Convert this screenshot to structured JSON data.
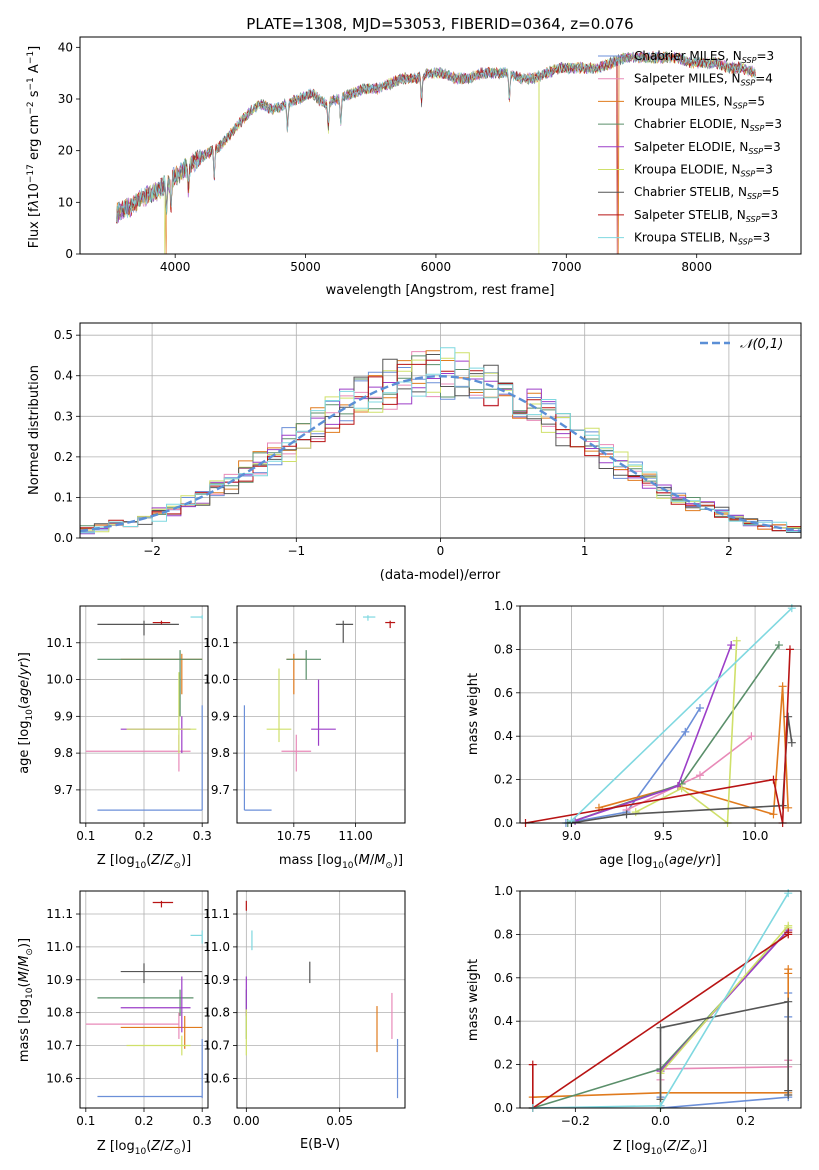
{
  "colors": {
    "Chabrier MILES": "#6b8fd8",
    "Salpeter MILES": "#e88ab8",
    "Kroupa MILES": "#e07b1e",
    "Chabrier ELODIE": "#5a8f6a",
    "Salpeter ELODIE": "#9c3ec8",
    "Kroupa ELODIE": "#cfe06a",
    "Chabrier STELIB": "#555555",
    "Salpeter STELIB": "#b81414",
    "Kroupa STELIB": "#7fd8e0",
    "normal": "#5b8fd6"
  },
  "chart_data": [
    {
      "id": "spectrum",
      "type": "line",
      "title": "PLATE=1308, MJD=53053, FIBERID=0364, z=0.076",
      "xlabel": "wavelength [Angstrom, rest frame]",
      "ylabel": "Flux [f_λ 10^-17 erg cm^-2 s^-1 A^-1]",
      "xlim": [
        3270,
        8800
      ],
      "ylim": [
        0,
        42
      ],
      "xticks": [
        4000,
        5000,
        6000,
        7000,
        8000
      ],
      "yticks": [
        0,
        10,
        20,
        30,
        40
      ],
      "legend": [
        {
          "name": "Chabrier MILES",
          "nssp": "3"
        },
        {
          "name": "Salpeter MILES",
          "nssp": "4"
        },
        {
          "name": "Kroupa MILES",
          "nssp": "5"
        },
        {
          "name": "Chabrier ELODIE",
          "nssp": "3"
        },
        {
          "name": "Salpeter ELODIE",
          "nssp": "3"
        },
        {
          "name": "Kroupa ELODIE",
          "nssp": "3"
        },
        {
          "name": "Chabrier STELIB",
          "nssp": "5"
        },
        {
          "name": "Salpeter STELIB",
          "nssp": "3"
        },
        {
          "name": "Kroupa STELIB",
          "nssp": "3"
        }
      ],
      "legend_position": "right",
      "continuum": {
        "x": [
          3550,
          3650,
          3750,
          3850,
          3950,
          4050,
          4150,
          4250,
          4350,
          4450,
          4550,
          4650,
          4750,
          4850,
          4950,
          5050,
          5150,
          5250,
          5350,
          5450,
          5550,
          5650,
          5750,
          5850,
          5950,
          6050,
          6150,
          6250,
          6350,
          6450,
          6550,
          6650,
          6750,
          6850,
          6950,
          7050,
          7150,
          7250,
          7350,
          7450,
          7550,
          7650,
          7750,
          7850,
          7950,
          8050,
          8150,
          8250,
          8350,
          8450
        ],
        "y": [
          8,
          9,
          11,
          12,
          14,
          16,
          18,
          19.5,
          21,
          24,
          27,
          29,
          28,
          29,
          30,
          31,
          29,
          30,
          31,
          32,
          32,
          33,
          34,
          34,
          35,
          35,
          34,
          34,
          35,
          35,
          35,
          34,
          34,
          35,
          36,
          36,
          36,
          36,
          37,
          38,
          38,
          38,
          38,
          38,
          37,
          37,
          37,
          36,
          36,
          35
        ]
      },
      "absorption_features": [
        3934,
        3968,
        4102,
        4300,
        4861,
        5175,
        5270,
        5890,
        6563
      ],
      "series_drops": [
        {
          "name": "Kroupa ELODIE",
          "x": 3920
        },
        {
          "name": "Kroupa MILES",
          "x": 3930
        },
        {
          "name": "Kroupa ELODIE",
          "x": 6790
        },
        {
          "name": "Salpeter STELIB",
          "x": 7390
        },
        {
          "name": "Kroupa MILES",
          "x": 7400
        }
      ]
    },
    {
      "id": "residuals",
      "type": "histogram",
      "xlabel": "(data-model)/error",
      "ylabel": "Normed distribution",
      "xlim": [
        -2.5,
        2.5
      ],
      "ylim": [
        0,
        0.53
      ],
      "xticks": [
        -2,
        -1,
        0,
        1,
        2
      ],
      "yticks": [
        0.0,
        0.1,
        0.2,
        0.3,
        0.4,
        0.5
      ],
      "grid": true,
      "bin_width": 0.1,
      "reference": {
        "name": "𝒩(0,1)",
        "mean": 0,
        "sigma": 1
      },
      "legend_position": "top-right"
    },
    {
      "id": "age_vs_Z",
      "type": "errorbar",
      "xlabel": "Z [log10(Z/Z⊙)]",
      "ylabel": "age  [log10(age/yr)]",
      "xlim": [
        0.09,
        0.31
      ],
      "ylim": [
        9.61,
        10.2
      ],
      "xticks": [
        0.1,
        0.2,
        0.3
      ],
      "yticks": [
        9.7,
        9.8,
        9.9,
        10.0,
        10.1
      ],
      "grid": true,
      "points": [
        {
          "s": "Chabrier MILES",
          "x": 0.3,
          "xl": 0.12,
          "xh": 0.3,
          "y": 9.645,
          "yl": 9.645,
          "yh": 9.93
        },
        {
          "s": "Salpeter MILES",
          "x": 0.26,
          "xl": 0.1,
          "xh": 0.28,
          "y": 9.805,
          "yl": 9.75,
          "yh": 9.85
        },
        {
          "s": "Kroupa MILES",
          "x": 0.265,
          "xl": 0.16,
          "xh": 0.3,
          "y": 10.055,
          "yl": 9.96,
          "yh": 10.07
        },
        {
          "s": "Chabrier ELODIE",
          "x": 0.262,
          "xl": 0.12,
          "xh": 0.3,
          "y": 10.055,
          "yl": 9.9,
          "yh": 10.08
        },
        {
          "s": "Salpeter ELODIE",
          "x": 0.265,
          "xl": 0.16,
          "xh": 0.28,
          "y": 9.865,
          "yl": 9.8,
          "yh": 9.9
        },
        {
          "s": "Kroupa ELODIE",
          "x": 0.26,
          "xl": 0.17,
          "xh": 0.29,
          "y": 9.865,
          "yl": 9.8,
          "yh": 10.02
        },
        {
          "s": "Chabrier STELIB",
          "x": 0.2,
          "xl": 0.12,
          "xh": 0.26,
          "y": 10.15,
          "yl": 10.12,
          "yh": 10.16
        },
        {
          "s": "Salpeter STELIB",
          "x": 0.23,
          "xl": 0.215,
          "xh": 0.245,
          "y": 10.155,
          "yl": 10.15,
          "yh": 10.16
        },
        {
          "s": "Kroupa STELIB",
          "x": 0.3,
          "xl": 0.28,
          "xh": 0.3,
          "y": 10.17,
          "yl": 10.165,
          "yh": 10.175
        }
      ]
    },
    {
      "id": "age_vs_mass",
      "type": "errorbar",
      "xlabel": "mass [log10(M/M⊙)]",
      "ylabel": "",
      "xlim": [
        10.52,
        11.2
      ],
      "ylim": [
        9.61,
        10.2
      ],
      "xticks": [
        10.75,
        11.0
      ],
      "yticks": [
        9.7,
        9.8,
        9.9,
        10.0,
        10.1
      ],
      "grid": true,
      "points": [
        {
          "s": "Chabrier MILES",
          "x": 10.55,
          "xl": 10.55,
          "xh": 10.66,
          "y": 9.645,
          "yl": 9.645,
          "yh": 9.93
        },
        {
          "s": "Salpeter MILES",
          "x": 10.76,
          "xl": 10.7,
          "xh": 10.82,
          "y": 9.805,
          "yl": 9.75,
          "yh": 9.85
        },
        {
          "s": "Kroupa MILES",
          "x": 10.75,
          "xl": 10.72,
          "xh": 10.8,
          "y": 10.055,
          "yl": 9.96,
          "yh": 10.07
        },
        {
          "s": "Chabrier ELODIE",
          "x": 10.8,
          "xl": 10.72,
          "xh": 10.86,
          "y": 10.055,
          "yl": 10.0,
          "yh": 10.08
        },
        {
          "s": "Salpeter ELODIE",
          "x": 10.85,
          "xl": 10.82,
          "xh": 10.92,
          "y": 9.865,
          "yl": 9.82,
          "yh": 10.0
        },
        {
          "s": "Kroupa ELODIE",
          "x": 10.69,
          "xl": 10.64,
          "xh": 10.74,
          "y": 9.865,
          "yl": 9.83,
          "yh": 10.03
        },
        {
          "s": "Chabrier STELIB",
          "x": 10.95,
          "xl": 10.92,
          "xh": 10.99,
          "y": 10.15,
          "yl": 10.1,
          "yh": 10.16
        },
        {
          "s": "Salpeter STELIB",
          "x": 11.14,
          "xl": 11.12,
          "xh": 11.16,
          "y": 10.155,
          "yl": 10.14,
          "yh": 10.16
        },
        {
          "s": "Kroupa STELIB",
          "x": 11.05,
          "xl": 11.03,
          "xh": 11.08,
          "y": 10.17,
          "yl": 10.16,
          "yh": 10.175
        }
      ]
    },
    {
      "id": "mass_weight_vs_age",
      "type": "line",
      "xlabel": "age  [log10(age/yr)]",
      "ylabel": "mass weight",
      "xlim": [
        8.72,
        10.25
      ],
      "ylim": [
        0,
        1.0
      ],
      "xticks": [
        9.0,
        9.5,
        10.0
      ],
      "yticks": [
        0.0,
        0.2,
        0.4,
        0.6,
        0.8,
        1.0
      ],
      "grid": true,
      "series": [
        {
          "name": "Chabrier MILES",
          "x": [
            8.97,
            9.3,
            9.62,
            9.7
          ],
          "y": [
            0.0,
            0.05,
            0.42,
            0.53
          ]
        },
        {
          "name": "Salpeter MILES",
          "x": [
            9.3,
            9.6,
            9.7,
            9.98
          ],
          "y": [
            0.06,
            0.18,
            0.22,
            0.4
          ]
        },
        {
          "name": "Kroupa MILES",
          "x": [
            9.15,
            9.58,
            10.1,
            10.15,
            10.18
          ],
          "y": [
            0.07,
            0.17,
            0.04,
            0.63,
            0.07
          ]
        },
        {
          "name": "Chabrier ELODIE",
          "x": [
            8.98,
            9.6,
            10.13
          ],
          "y": [
            0.0,
            0.18,
            0.82
          ]
        },
        {
          "name": "Salpeter ELODIE",
          "x": [
            9.02,
            9.58,
            9.87
          ],
          "y": [
            0.01,
            0.17,
            0.82
          ]
        },
        {
          "name": "Kroupa ELODIE",
          "x": [
            9.35,
            9.6,
            9.85,
            9.9
          ],
          "y": [
            0.05,
            0.16,
            0.0,
            0.84
          ]
        },
        {
          "name": "Chabrier STELIB",
          "x": [
            9.0,
            9.3,
            10.15,
            10.18,
            10.2
          ],
          "y": [
            0.0,
            0.04,
            0.08,
            0.49,
            0.37
          ]
        },
        {
          "name": "Salpeter STELIB",
          "x": [
            8.75,
            10.1,
            10.15,
            10.19
          ],
          "y": [
            0.0,
            0.2,
            0.0,
            0.8
          ]
        },
        {
          "name": "Kroupa STELIB",
          "x": [
            9.0,
            10.2
          ],
          "y": [
            0.01,
            0.99
          ]
        }
      ]
    },
    {
      "id": "mass_vs_Z",
      "type": "errorbar",
      "xlabel": "Z [log10(Z/Z⊙)]",
      "ylabel": "mass [log10(M/M⊙)]",
      "xlim": [
        0.09,
        0.31
      ],
      "ylim": [
        10.51,
        11.17
      ],
      "xticks": [
        0.1,
        0.2,
        0.3
      ],
      "yticks": [
        10.6,
        10.7,
        10.8,
        10.9,
        11.0,
        11.1
      ],
      "grid": true,
      "points": [
        {
          "s": "Chabrier MILES",
          "x": 0.3,
          "xl": 0.12,
          "xh": 0.3,
          "y": 10.545,
          "yl": 10.54,
          "yh": 10.72
        },
        {
          "s": "Salpeter MILES",
          "x": 0.26,
          "xl": 0.1,
          "xh": 0.26,
          "y": 10.765,
          "yl": 10.72,
          "yh": 10.8
        },
        {
          "s": "Kroupa MILES",
          "x": 0.27,
          "xl": 0.16,
          "xh": 0.3,
          "y": 10.755,
          "yl": 10.69,
          "yh": 10.79
        },
        {
          "s": "Chabrier ELODIE",
          "x": 0.262,
          "xl": 0.12,
          "xh": 0.285,
          "y": 10.845,
          "yl": 10.79,
          "yh": 10.87
        },
        {
          "s": "Salpeter ELODIE",
          "x": 0.265,
          "xl": 0.16,
          "xh": 0.28,
          "y": 10.815,
          "yl": 10.74,
          "yh": 10.91
        },
        {
          "s": "Kroupa ELODIE",
          "x": 0.265,
          "xl": 0.17,
          "xh": 0.28,
          "y": 10.7,
          "yl": 10.67,
          "yh": 10.73
        },
        {
          "s": "Chabrier STELIB",
          "x": 0.2,
          "xl": 0.16,
          "xh": 0.3,
          "y": 10.925,
          "yl": 10.89,
          "yh": 10.95
        },
        {
          "s": "Salpeter STELIB",
          "x": 0.23,
          "xl": 0.215,
          "xh": 0.25,
          "y": 11.135,
          "yl": 11.12,
          "yh": 11.14
        },
        {
          "s": "Kroupa STELIB",
          "x": 0.3,
          "xl": 0.28,
          "xh": 0.3,
          "y": 11.035,
          "yl": 11.01,
          "yh": 11.05
        }
      ]
    },
    {
      "id": "mass_vs_ebv",
      "type": "errorbar",
      "xlabel": "E(B-V)",
      "ylabel": "",
      "xlim": [
        -0.005,
        0.085
      ],
      "ylim": [
        10.51,
        11.17
      ],
      "xticks": [
        0.0,
        0.05
      ],
      "yticks": [
        10.6,
        10.7,
        10.8,
        10.9,
        11.0,
        11.1
      ],
      "grid": true,
      "points": [
        {
          "s": "Chabrier MILES",
          "x": 0.081,
          "y": 10.63,
          "yl": 10.54,
          "yh": 10.72
        },
        {
          "s": "Salpeter MILES",
          "x": 0.078,
          "y": 10.79,
          "yl": 10.72,
          "yh": 10.86
        },
        {
          "s": "Kroupa MILES",
          "x": 0.07,
          "y": 10.75,
          "yl": 10.68,
          "yh": 10.82
        },
        {
          "s": "Chabrier ELODIE",
          "x": 0.0,
          "y": 10.78,
          "yl": 10.72,
          "yh": 10.87
        },
        {
          "s": "Salpeter ELODIE",
          "x": 0.0,
          "y": 10.85,
          "yl": 10.79,
          "yh": 10.91
        },
        {
          "s": "Kroupa ELODIE",
          "x": 0.0,
          "y": 10.72,
          "yl": 10.67,
          "yh": 10.81
        },
        {
          "s": "Chabrier STELIB",
          "x": 0.034,
          "y": 10.925,
          "yl": 10.89,
          "yh": 10.955
        },
        {
          "s": "Salpeter STELIB",
          "x": 0.0,
          "y": 11.125,
          "yl": 11.11,
          "yh": 11.14
        },
        {
          "s": "Kroupa STELIB",
          "x": 0.003,
          "y": 11.02,
          "yl": 10.99,
          "yh": 11.05
        }
      ]
    },
    {
      "id": "mass_weight_vs_Z",
      "type": "line",
      "xlabel": "Z [log10(Z/Z⊙)]",
      "ylabel": "mass weight",
      "xlim": [
        -0.33,
        0.33
      ],
      "ylim": [
        0,
        1.0
      ],
      "xticks": [
        -0.2,
        0.0,
        0.2
      ],
      "yticks": [
        0.0,
        0.2,
        0.4,
        0.6,
        0.8,
        1.0
      ],
      "grid": true,
      "series": [
        {
          "name": "Chabrier MILES",
          "x": [
            0.0,
            0.0,
            0.3,
            0.3,
            0.3
          ],
          "y": [
            0.05,
            0.0,
            0.05,
            0.42,
            0.53
          ]
        },
        {
          "name": "Salpeter MILES",
          "x": [
            0.0,
            0.0,
            0.3,
            0.3
          ],
          "y": [
            0.13,
            0.18,
            0.19,
            0.22
          ]
        },
        {
          "name": "Kroupa MILES",
          "x": [
            -0.3,
            0.0,
            0.3,
            0.3,
            0.3
          ],
          "y": [
            0.05,
            0.07,
            0.07,
            0.62,
            0.64
          ]
        },
        {
          "name": "Chabrier ELODIE",
          "x": [
            -0.3,
            0.0,
            0.3
          ],
          "y": [
            0.0,
            0.18,
            0.82
          ]
        },
        {
          "name": "Salpeter ELODIE",
          "x": [
            0.0,
            0.0,
            0.3
          ],
          "y": [
            0.01,
            0.17,
            0.82
          ]
        },
        {
          "name": "Kroupa ELODIE",
          "x": [
            0.0,
            0.0,
            0.3,
            0.3
          ],
          "y": [
            0.0,
            0.16,
            0.84,
            0.83
          ]
        },
        {
          "name": "Chabrier STELIB",
          "x": [
            0.0,
            0.0,
            0.3,
            0.3,
            0.3
          ],
          "y": [
            0.04,
            0.37,
            0.49,
            0.08,
            0.06
          ]
        },
        {
          "name": "Salpeter STELIB",
          "x": [
            -0.3,
            -0.3,
            0.3,
            0.3
          ],
          "y": [
            0.2,
            0.0,
            0.8,
            0.81
          ]
        },
        {
          "name": "Kroupa STELIB",
          "x": [
            -0.3,
            0.0,
            0.3
          ],
          "y": [
            0.0,
            0.01,
            0.99
          ]
        }
      ]
    }
  ]
}
